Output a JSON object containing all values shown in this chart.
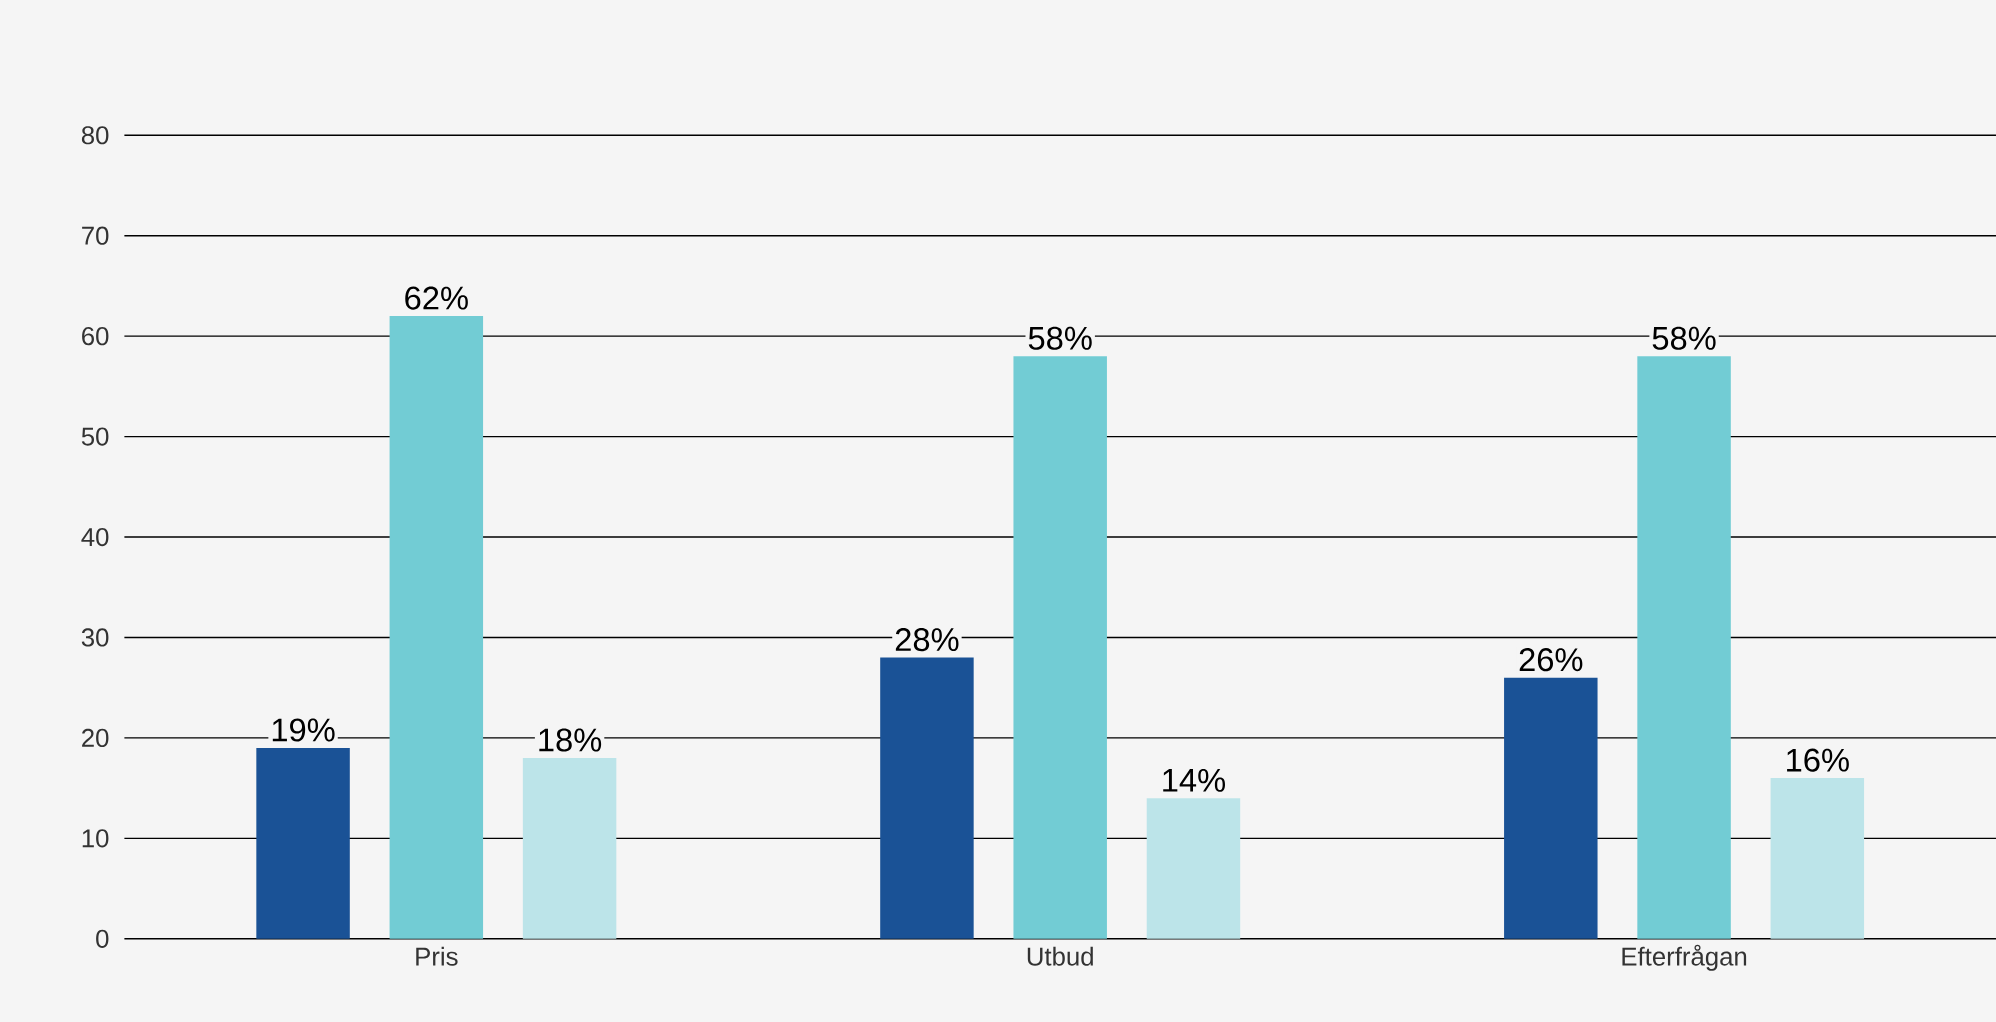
{
  "chart_data": {
    "type": "bar",
    "categories": [
      "Pris",
      "Utbud",
      "Efterfrågan"
    ],
    "series": [
      {
        "color": "#1a5296",
        "values": [
          19,
          28,
          26
        ],
        "value_labels": [
          "19%",
          "28%",
          "26%"
        ]
      },
      {
        "color": "#72ccd4",
        "values": [
          62,
          58,
          58
        ],
        "value_labels": [
          "62%",
          "58%",
          "58%"
        ]
      },
      {
        "color": "#bce4e9",
        "values": [
          18,
          14,
          16
        ],
        "value_labels": [
          "18%",
          "14%",
          "16%"
        ]
      }
    ],
    "ylim": [
      0,
      80
    ],
    "yticks": [
      0,
      10,
      20,
      30,
      40,
      50,
      60,
      70,
      80
    ],
    "grid": "y"
  }
}
